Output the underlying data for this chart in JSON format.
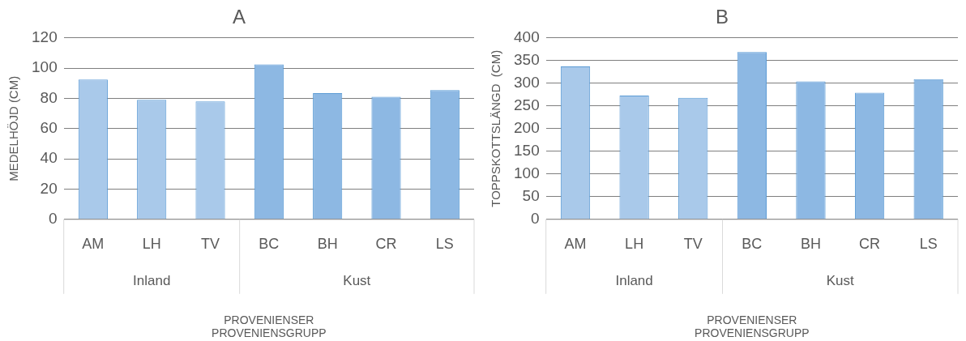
{
  "chart_data": [
    {
      "type": "bar",
      "title": "A",
      "xlabel": "PROVENIENSER\nPROVENIENSGRUPP",
      "ylabel": "MEDELHÖJD (CM)",
      "categories": [
        "AM",
        "LH",
        "TV",
        "BC",
        "BH",
        "CR",
        "LS"
      ],
      "values": [
        92.5,
        79,
        78,
        102.5,
        83.5,
        81,
        85.5
      ],
      "colors": [
        "#a9c9ea",
        "#a9c9ea",
        "#a9c9ea",
        "#8db8e3",
        "#8db8e3",
        "#8db8e3",
        "#8db8e3"
      ],
      "ylim": [
        0,
        120
      ],
      "yticks": [
        0,
        20,
        40,
        60,
        80,
        100,
        120
      ],
      "grid": "y",
      "legend": false,
      "annotations": [
        "Inland",
        "Kust"
      ]
    },
    {
      "type": "bar",
      "title": "B",
      "xlabel": "PROVENIENSER\nPROVENIENSGRUPP",
      "ylabel": "TOPPSKOTTSLÄNGD  (CM)",
      "categories": [
        "AM",
        "LH",
        "TV",
        "BC",
        "BH",
        "CR",
        "LS"
      ],
      "values": [
        337,
        273,
        268,
        369,
        304,
        279,
        309
      ],
      "colors": [
        "#a9c9ea",
        "#a9c9ea",
        "#a9c9ea",
        "#8db8e3",
        "#8db8e3",
        "#8db8e3",
        "#8db8e3"
      ],
      "ylim": [
        0,
        400
      ],
      "yticks": [
        0,
        50,
        100,
        150,
        200,
        250,
        300,
        350,
        400
      ],
      "grid": "y",
      "legend": false,
      "annotations": [
        "Inland",
        "Kust"
      ]
    }
  ]
}
